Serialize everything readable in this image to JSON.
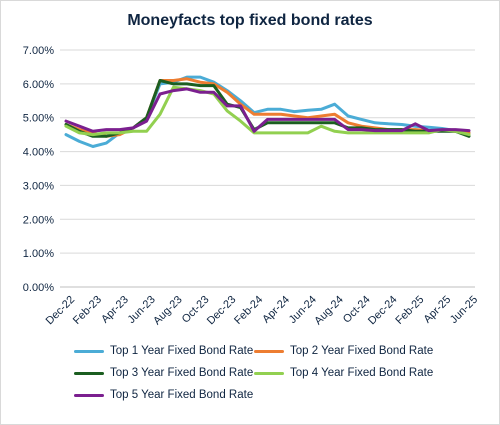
{
  "chart_data": {
    "type": "line",
    "title": "Moneyfacts top fixed bond rates",
    "x": [
      "Dec-22",
      "Jan-23",
      "Feb-23",
      "Mar-23",
      "Apr-23",
      "May-23",
      "Jun-23",
      "Jul-23",
      "Aug-23",
      "Sep-23",
      "Oct-23",
      "Nov-23",
      "Dec-23",
      "Jan-24",
      "Feb-24",
      "Mar-24",
      "Apr-24",
      "May-24",
      "Jun-24",
      "Jul-24",
      "Aug-24",
      "Sep-24",
      "Oct-24",
      "Nov-24",
      "Dec-24",
      "Jan-25",
      "Feb-25",
      "Mar-25",
      "Apr-25",
      "May-25",
      "Jun-25"
    ],
    "xtick_labels": [
      "Dec-22",
      "Feb-23",
      "Apr-23",
      "Jun-23",
      "Aug-23",
      "Oct-23",
      "Dec-23",
      "Feb-24",
      "Apr-24",
      "Jun-24",
      "Aug-24",
      "Oct-24",
      "Dec-24",
      "Feb-25",
      "Apr-25",
      "Jun-25"
    ],
    "ytick_labels": [
      "0.00%",
      "1.00%",
      "2.00%",
      "3.00%",
      "4.00%",
      "5.00%",
      "6.00%",
      "7.00%"
    ],
    "ylim": [
      0,
      7
    ],
    "grid": true,
    "legend_position": "bottom",
    "series": [
      {
        "name": "Top 1 Year Fixed Bond Rate",
        "color": "#4bacd6",
        "values": [
          4.5,
          4.3,
          4.15,
          4.25,
          4.55,
          4.7,
          5.0,
          6.0,
          6.05,
          6.2,
          6.2,
          6.05,
          5.8,
          5.5,
          5.15,
          5.25,
          5.25,
          5.18,
          5.22,
          5.25,
          5.4,
          5.05,
          4.95,
          4.85,
          4.82,
          4.8,
          4.75,
          4.72,
          4.68,
          4.62,
          4.55
        ]
      },
      {
        "name": "Top 2 Year Fixed Bond Rate",
        "color": "#ed7d31",
        "values": [
          4.8,
          4.65,
          4.55,
          4.45,
          4.5,
          4.7,
          5.0,
          6.1,
          6.1,
          6.15,
          6.05,
          6.0,
          5.75,
          5.4,
          5.1,
          5.1,
          5.1,
          5.05,
          5.0,
          5.05,
          5.1,
          4.85,
          4.75,
          4.7,
          4.65,
          4.65,
          4.65,
          4.62,
          4.62,
          4.6,
          4.55
        ]
      },
      {
        "name": "Top 3 Year Fixed Bond Rate",
        "color": "#1b5e20",
        "values": [
          4.8,
          4.6,
          4.45,
          4.45,
          4.55,
          4.7,
          5.0,
          6.1,
          6.0,
          6.0,
          5.95,
          5.95,
          5.4,
          5.3,
          4.65,
          4.85,
          4.85,
          4.85,
          4.85,
          4.85,
          4.85,
          4.7,
          4.7,
          4.65,
          4.65,
          4.65,
          4.6,
          4.6,
          4.6,
          4.6,
          4.45
        ]
      },
      {
        "name": "Top 4 Year Fixed Bond Rate",
        "color": "#92d050",
        "values": [
          4.75,
          4.55,
          4.5,
          4.55,
          4.55,
          4.6,
          4.6,
          5.1,
          5.9,
          5.85,
          5.8,
          5.7,
          5.2,
          4.9,
          4.55,
          4.55,
          4.55,
          4.55,
          4.55,
          4.75,
          4.6,
          4.55,
          4.55,
          4.55,
          4.55,
          4.55,
          4.55,
          4.55,
          4.65,
          4.6,
          4.5
        ]
      },
      {
        "name": "Top 5 Year Fixed Bond Rate",
        "color": "#7b1f8f",
        "values": [
          4.9,
          4.75,
          4.6,
          4.65,
          4.65,
          4.7,
          4.9,
          5.7,
          5.8,
          5.85,
          5.75,
          5.75,
          5.35,
          5.35,
          4.6,
          4.95,
          4.95,
          4.95,
          4.95,
          4.95,
          4.95,
          4.65,
          4.65,
          4.62,
          4.62,
          4.62,
          4.82,
          4.62,
          4.65,
          4.65,
          4.62
        ]
      }
    ]
  }
}
